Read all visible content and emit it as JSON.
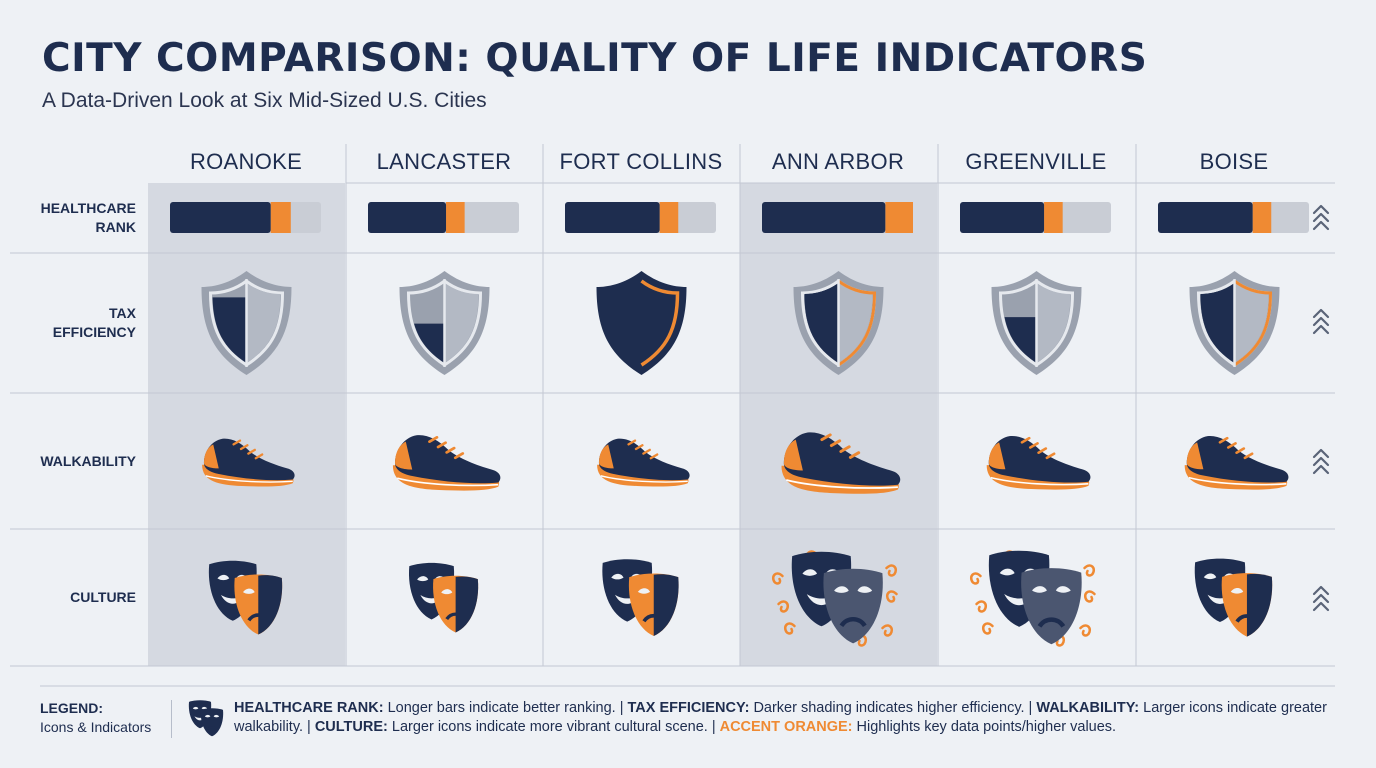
{
  "title": "CITY COMPARISON: QUALITY OF LIFE INDICATORS",
  "subtitle": "A Data-Driven Look at Six Mid-Sized U.S. Cities",
  "colors": {
    "navy": "#1e2d4f",
    "orange": "#ef8a33",
    "gray": "#c9cdd5",
    "slate": "#5a6478",
    "highlight_col": "#d5d9e1"
  },
  "chart_data": {
    "type": "table",
    "cities": [
      "ROANOKE",
      "LANCASTER",
      "FORT COLLINS",
      "ANN ARBOR",
      "GREENVILLE",
      "BOISE"
    ],
    "highlighted_columns": [
      "ROANOKE",
      "ANN ARBOR"
    ],
    "rows": [
      {
        "label_lines": [
          "HEALTHCARE",
          "RANK"
        ],
        "icon": "bar",
        "values": [
          0.68,
          0.53,
          0.64,
          0.83,
          0.57,
          0.64
        ],
        "accent": [
          0.12,
          0.11,
          0.11,
          0.17,
          0.11,
          0.11
        ]
      },
      {
        "label_lines": [
          "TAX",
          "EFFICIENCY"
        ],
        "icon": "shield-icon",
        "values": [
          0.5,
          0.3,
          1.0,
          0.6,
          0.35,
          0.55
        ],
        "accent_edge": [
          false,
          false,
          true,
          true,
          false,
          true
        ]
      },
      {
        "label_lines": [
          "WALKABILITY"
        ],
        "icon": "sneaker-icon",
        "values": [
          0.5,
          0.7,
          0.5,
          0.85,
          0.65,
          0.65
        ]
      },
      {
        "label_lines": [
          "CULTURE"
        ],
        "icon": "theater-masks-icon",
        "values": [
          0.45,
          0.38,
          0.5,
          0.75,
          0.78,
          0.52
        ],
        "flourish": [
          false,
          false,
          false,
          true,
          true,
          false
        ]
      }
    ],
    "trend_indicator": "chevron-up-icon"
  },
  "legend": {
    "title": "LEGEND:",
    "subtitle": "Icons & Indicators",
    "icon": "theater-masks-icon",
    "items": [
      {
        "key": "HEALTHCARE RANK:",
        "text": "Longer bars indicate better ranking."
      },
      {
        "key": "TAX EFFICIENCY:",
        "text": "Darker shading indicates higher efficiency."
      },
      {
        "key": "WALKABILITY:",
        "text": "Larger icons indicate greater walkability."
      },
      {
        "key": "CULTURE:",
        "text": "Larger icons indicate more vibrant cultural scene."
      },
      {
        "key": "ACCENT ORANGE:",
        "text": "Highlights key data points/higher values.",
        "accent": true
      }
    ]
  }
}
